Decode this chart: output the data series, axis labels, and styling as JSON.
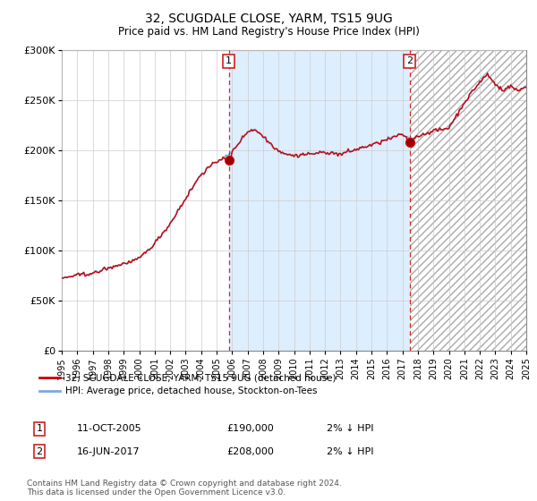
{
  "title": "32, SCUGDALE CLOSE, YARM, TS15 9UG",
  "subtitle": "Price paid vs. HM Land Registry's House Price Index (HPI)",
  "hpi_label": "HPI: Average price, detached house, Stockton-on-Tees",
  "property_label": "32, SCUGDALE CLOSE, YARM, TS15 9UG (detached house)",
  "footnote": "Contains HM Land Registry data © Crown copyright and database right 2024.\nThis data is licensed under the Open Government Licence v3.0.",
  "sale1_date": "11-OCT-2005",
  "sale1_price": "£190,000",
  "sale1_hpi": "2% ↓ HPI",
  "sale2_date": "16-JUN-2017",
  "sale2_price": "£208,000",
  "sale2_hpi": "2% ↓ HPI",
  "sale1_year": 2005.79,
  "sale2_year": 2017.46,
  "sale1_price_val": 190000,
  "sale2_price_val": 208000,
  "ylim": [
    0,
    300000
  ],
  "xlim": [
    1995,
    2025
  ],
  "yticks": [
    0,
    50000,
    100000,
    150000,
    200000,
    250000,
    300000
  ],
  "ytick_labels": [
    "£0",
    "£50K",
    "£100K",
    "£150K",
    "£200K",
    "£250K",
    "£300K"
  ],
  "property_color": "#cc0000",
  "hpi_color": "#7aaadd",
  "shade_color": "#ddeeff",
  "vline_color": "#dd2222",
  "background_color": "#ffffff",
  "grid_color": "#cccccc",
  "hatch_color": "#aaaaaa"
}
